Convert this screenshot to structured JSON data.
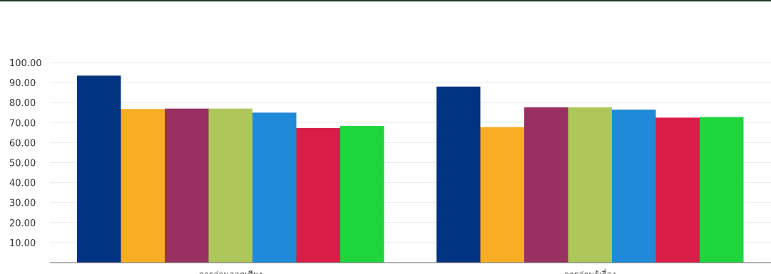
{
  "chart_data": {
    "type": "bar",
    "categories": [
      "การอ่านออกเสียง",
      "การอ่านรู้เรื่อง"
    ],
    "series": [
      {
        "color": "#003380",
        "values": [
          93.5,
          88.0
        ]
      },
      {
        "color": "#f7ae25",
        "values": [
          76.8,
          67.8
        ]
      },
      {
        "color": "#983061",
        "values": [
          77.0,
          77.7
        ]
      },
      {
        "color": "#adc75a",
        "values": [
          77.0,
          77.7
        ]
      },
      {
        "color": "#1f8ad8",
        "values": [
          75.0,
          76.5
        ]
      },
      {
        "color": "#d91d47",
        "values": [
          67.3,
          72.5
        ]
      },
      {
        "color": "#1ed63c",
        "values": [
          68.3,
          72.8
        ]
      }
    ],
    "y_ticks": [
      "10.00",
      "20.00",
      "30.00",
      "40.00",
      "50.00",
      "60.00",
      "70.00",
      "80.00",
      "90.00",
      "100.00"
    ],
    "ylim": [
      0,
      100
    ],
    "grid": true,
    "legend": "none"
  }
}
